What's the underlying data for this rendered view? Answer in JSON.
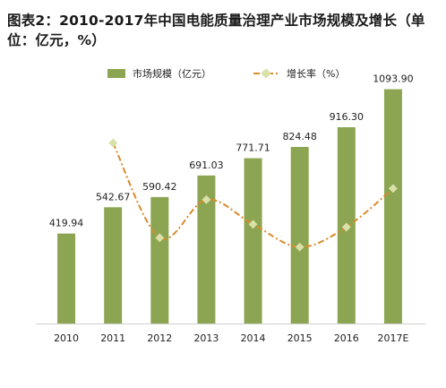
{
  "chart_data": {
    "type": "bar",
    "title_line1": "图表2：2010-2017年中国电能质量治理产业市场规模及增长（单",
    "title_line2": "位：亿元，%）",
    "categories": [
      "2010",
      "2011",
      "2012",
      "2013",
      "2014",
      "2015",
      "2016",
      "2017E"
    ],
    "series": [
      {
        "name": "市场规模（亿元）",
        "kind": "bar",
        "color": "#8ca552",
        "values": [
          419.94,
          542.67,
          590.42,
          691.03,
          771.71,
          824.48,
          916.3,
          1093.9
        ],
        "labels": [
          "419.94",
          "542.67",
          "590.42",
          "691.03",
          "771.71",
          "824.48",
          "916.30",
          "1093.90"
        ]
      },
      {
        "name": "增长率（%）",
        "kind": "line",
        "line_color": "#d98b2b",
        "marker_color": "#d9e0a8",
        "values": [
          null,
          29.2,
          8.8,
          17.0,
          11.7,
          6.8,
          11.1,
          19.4
        ]
      }
    ],
    "ylim_bar": [
      0,
      1200
    ],
    "ylim_line": [
      0,
      35
    ],
    "grid": false,
    "legend": "top"
  }
}
